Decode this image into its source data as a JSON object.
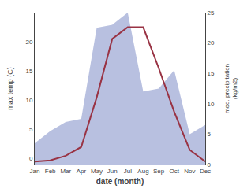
{
  "chart_data": {
    "type": "line",
    "xlabel": "date (month)",
    "ylabel": "max temp (C)",
    "y2label": "med. precipitation\n(kg/m2)",
    "categories": [
      "Jan",
      "Feb",
      "Mar",
      "Apr",
      "May",
      "Jun",
      "Jul",
      "Aug",
      "Sep",
      "Oct",
      "Nov",
      "Dec"
    ],
    "series": [
      {
        "type": "area",
        "axis": "y2",
        "color": "#b8c0e0",
        "values": [
          3.5,
          5.5,
          7.0,
          7.5,
          22.5,
          23.0,
          25.0,
          12.0,
          12.5,
          15.5,
          5.0,
          6.5
        ]
      },
      {
        "type": "line",
        "color": "#993344",
        "values": [
          -0.5,
          -0.3,
          0.5,
          2.0,
          10.5,
          20.5,
          22.5,
          22.5,
          15.5,
          8.0,
          1.5,
          -0.5
        ]
      }
    ],
    "ylim": [
      -1,
      25
    ],
    "yticks": [
      0,
      5,
      10,
      15,
      20
    ],
    "y2lim": [
      0,
      25
    ],
    "y2ticks": [
      0,
      5,
      10,
      15,
      20,
      25
    ],
    "grid": false
  }
}
